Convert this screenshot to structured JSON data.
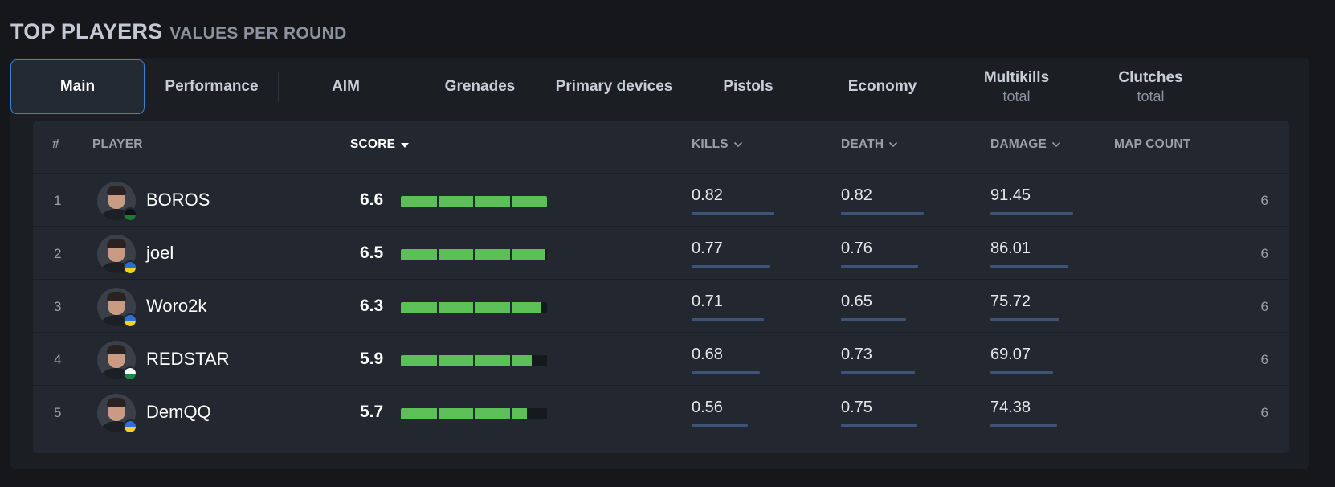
{
  "header": {
    "title": "TOP PLAYERS",
    "subtitle": "VALUES PER ROUND"
  },
  "tabs": [
    {
      "label": "Main",
      "sub": "",
      "active": true
    },
    {
      "label": "Performance",
      "sub": ""
    },
    {
      "label": "AIM",
      "sub": ""
    },
    {
      "label": "Grenades",
      "sub": ""
    },
    {
      "label": "Primary devices",
      "sub": ""
    },
    {
      "label": "Pistols",
      "sub": ""
    },
    {
      "label": "Economy",
      "sub": ""
    },
    {
      "label": "Multikills",
      "sub": "total"
    },
    {
      "label": "Clutches",
      "sub": "total"
    }
  ],
  "columns": {
    "rank": "#",
    "player": "PLAYER",
    "score": "SCORE",
    "kills": "KILLS",
    "death": "DEATH",
    "damage": "DAMAGE",
    "maps": "MAP COUNT"
  },
  "score_max": 6.6,
  "players": [
    {
      "rank": "1",
      "name": "BOROS",
      "score": "6.6",
      "kills": "0.82",
      "death": "0.82",
      "damage": "91.45",
      "maps": "6",
      "kills_frac": 1.0,
      "death_frac": 1.0,
      "damage_frac": 1.0,
      "flag": [
        "#111111",
        "#1a7a3a"
      ]
    },
    {
      "rank": "2",
      "name": "joel",
      "score": "6.5",
      "kills": "0.77",
      "death": "0.76",
      "damage": "86.01",
      "maps": "6",
      "kills_frac": 0.94,
      "death_frac": 0.93,
      "damage_frac": 0.94,
      "flag": [
        "#2a6fcf",
        "#f4d21e"
      ]
    },
    {
      "rank": "3",
      "name": "Woro2k",
      "score": "6.3",
      "kills": "0.71",
      "death": "0.65",
      "damage": "75.72",
      "maps": "6",
      "kills_frac": 0.87,
      "death_frac": 0.79,
      "damage_frac": 0.83,
      "flag": [
        "#2f6fd6",
        "#f6d025"
      ]
    },
    {
      "rank": "4",
      "name": "REDSTAR",
      "score": "5.9",
      "kills": "0.68",
      "death": "0.73",
      "damage": "69.07",
      "maps": "6",
      "kills_frac": 0.83,
      "death_frac": 0.89,
      "damage_frac": 0.76,
      "flag": [
        "#ffffff",
        "#1c8a46"
      ]
    },
    {
      "rank": "5",
      "name": "DemQQ",
      "score": "5.7",
      "kills": "0.56",
      "death": "0.75",
      "damage": "74.38",
      "maps": "6",
      "kills_frac": 0.68,
      "death_frac": 0.91,
      "damage_frac": 0.81,
      "flag": [
        "#2f6fd6",
        "#f6d025"
      ]
    }
  ],
  "colors": {
    "accent": "#3b82d6",
    "bar": "#5cbf58",
    "stat_line": "#3e5476"
  }
}
